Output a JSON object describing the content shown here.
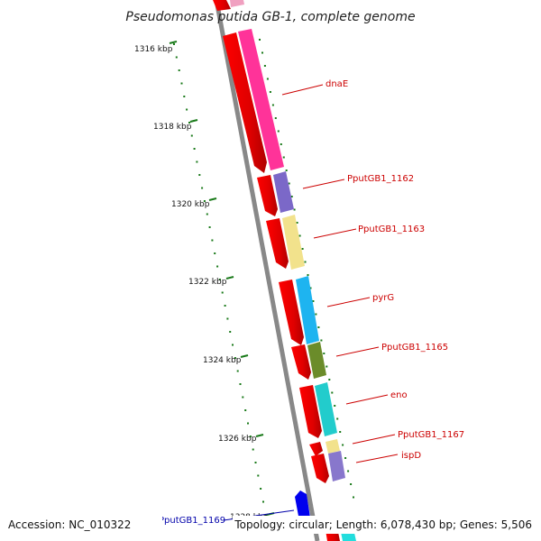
{
  "title": "Pseudomonas putida GB-1, complete genome",
  "footer": {
    "accession": "Accession: NC_010322",
    "topology": "Topology: circular; Length: 6,078,430 bp; Genes: 5,506"
  },
  "colors": {
    "backbone": "#888888",
    "tick": "#1a7a1a",
    "forward_strand_gene": "#ff0000",
    "label_red": "#cc0000",
    "label_blue": "#0000aa"
  },
  "ticks": [
    {
      "label": "1316 kbp"
    },
    {
      "label": "1318 kbp"
    },
    {
      "label": "1320 kbp"
    },
    {
      "label": "1322 kbp"
    },
    {
      "label": "1324 kbp"
    },
    {
      "label": "1326 kbp"
    },
    {
      "label": "1328 kbp"
    }
  ],
  "genes": [
    {
      "name": "dnaE",
      "color": "#ff3399"
    },
    {
      "name": "PputGB1_1162",
      "color": "#7b68c8"
    },
    {
      "name": "PputGB1_1163",
      "color": "#f2e28c"
    },
    {
      "name": "pyrG",
      "color": "#1eb4f0"
    },
    {
      "name": "PputGB1_1165",
      "color": "#6b8c2a"
    },
    {
      "name": "eno",
      "color": "#22cccc"
    },
    {
      "name": "PputGB1_1167",
      "color": "#f2e28c"
    },
    {
      "name": "ispD",
      "color": "#8877cc"
    },
    {
      "name": "PputGB1_1169",
      "color": "#0000ee"
    }
  ]
}
